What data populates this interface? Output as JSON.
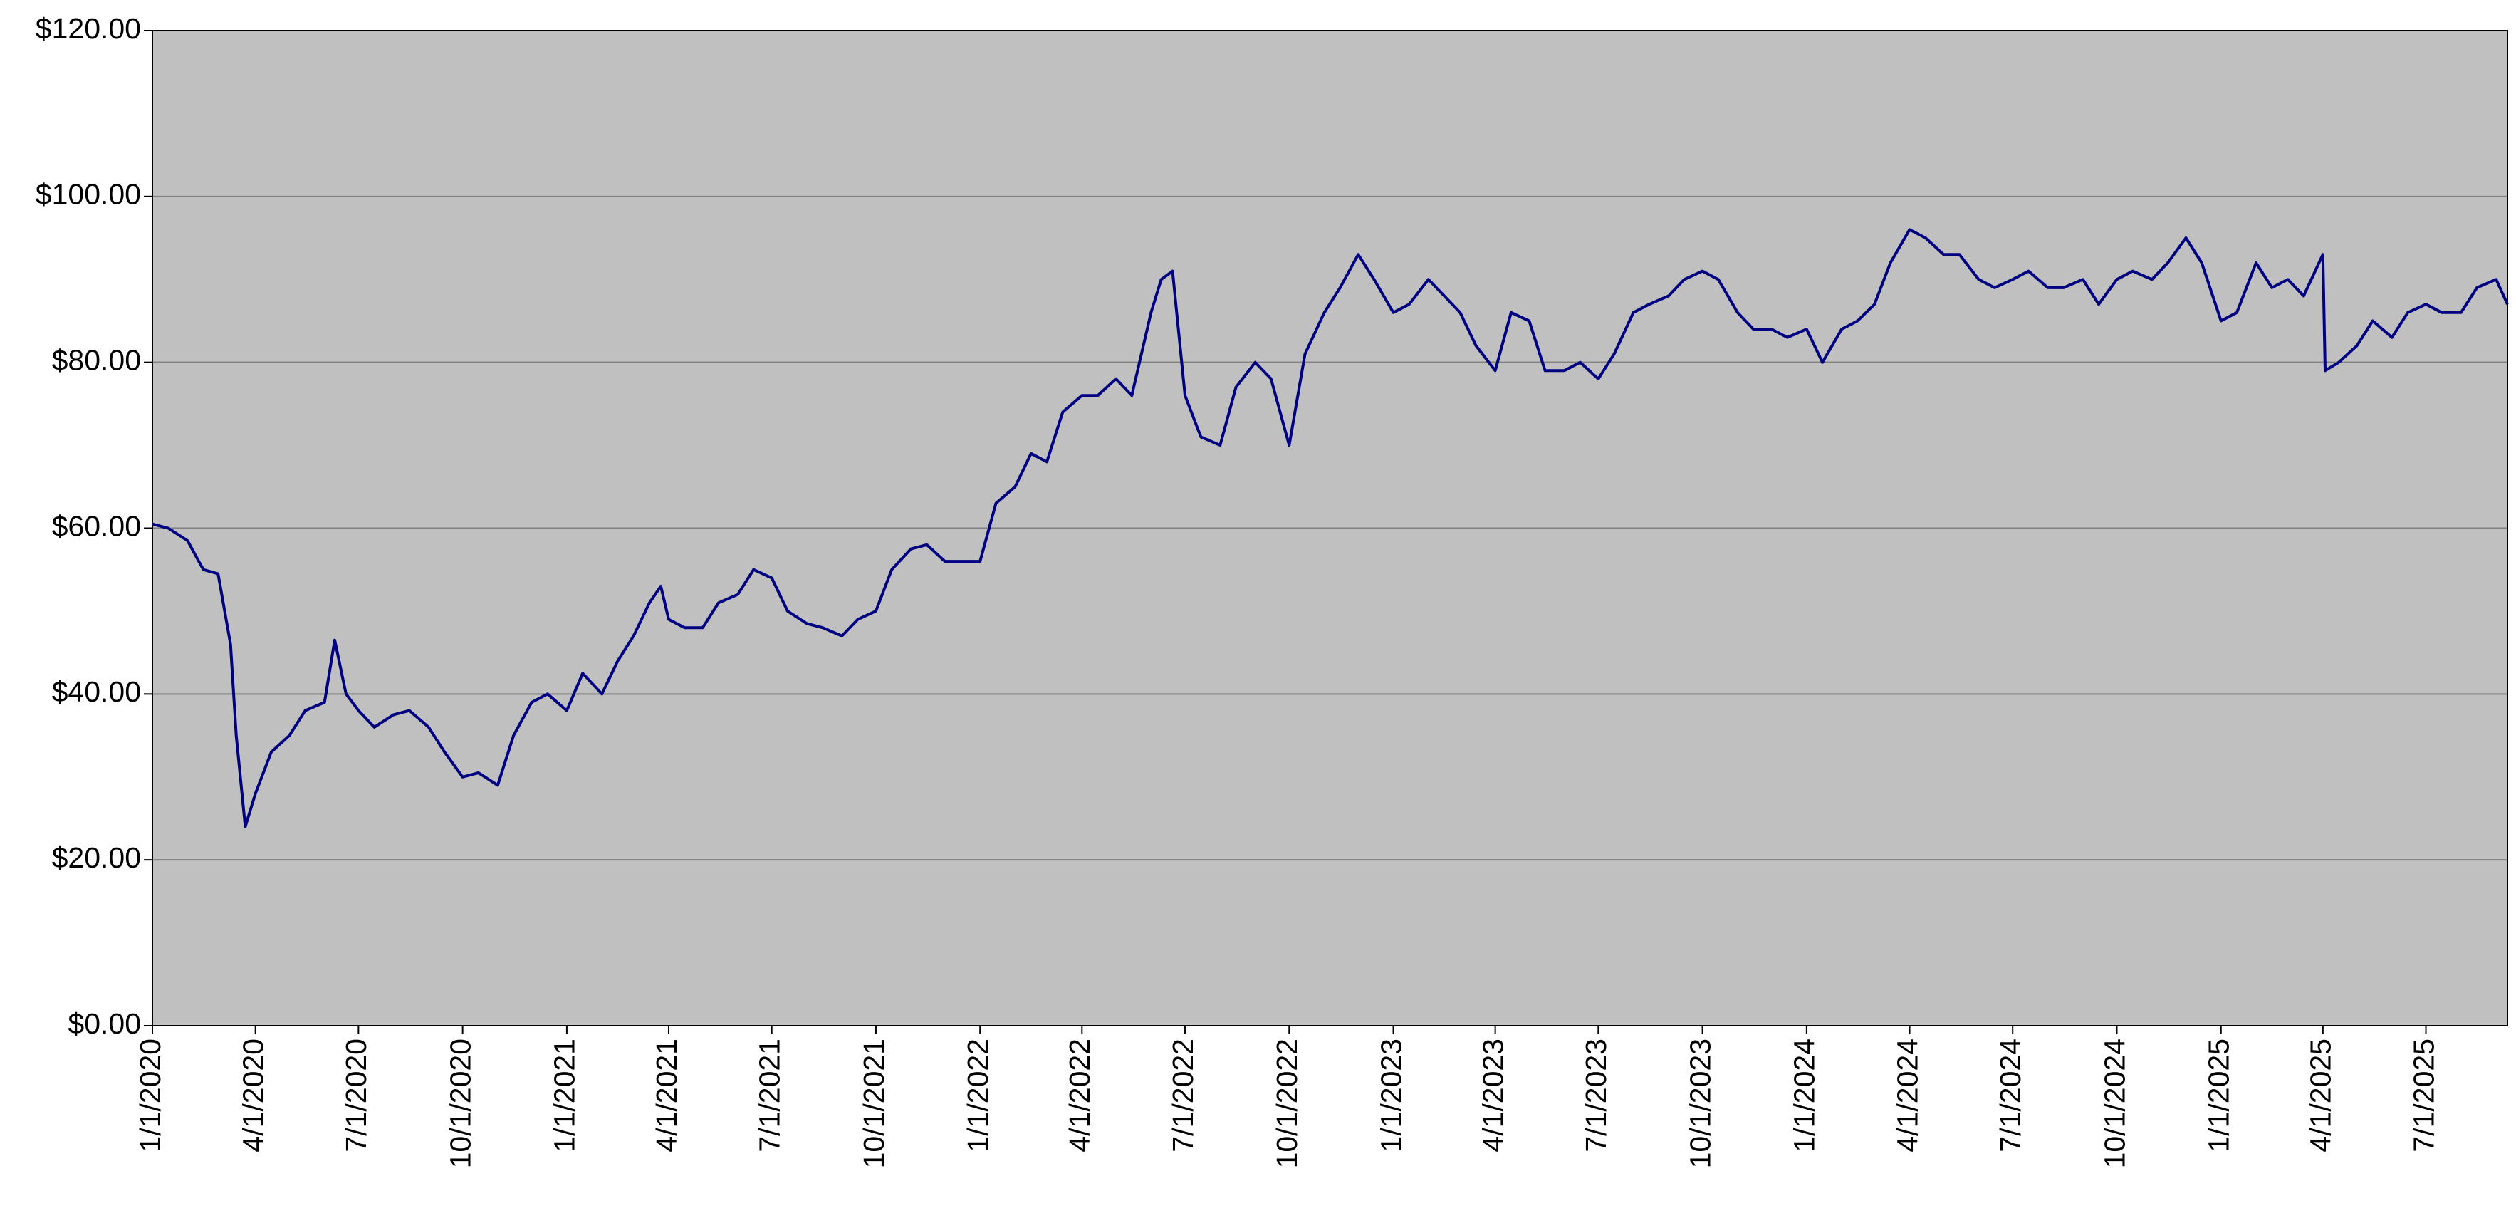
{
  "chart_data": {
    "type": "line",
    "x": [
      "1/1/2020",
      "1/15/2020",
      "2/1/2020",
      "2/15/2020",
      "2/28/2020",
      "3/10/2020",
      "3/15/2020",
      "3/23/2020",
      "4/1/2020",
      "4/15/2020",
      "5/1/2020",
      "5/15/2020",
      "6/1/2020",
      "6/10/2020",
      "6/20/2020",
      "7/1/2020",
      "7/15/2020",
      "8/1/2020",
      "8/15/2020",
      "9/1/2020",
      "9/15/2020",
      "10/1/2020",
      "10/15/2020",
      "11/1/2020",
      "11/15/2020",
      "12/1/2020",
      "12/15/2020",
      "1/1/2021",
      "1/15/2021",
      "2/1/2021",
      "2/15/2021",
      "3/1/2021",
      "3/15/2021",
      "3/25/2021",
      "4/1/2021",
      "4/15/2021",
      "5/1/2021",
      "5/15/2021",
      "6/1/2021",
      "6/15/2021",
      "7/1/2021",
      "7/15/2021",
      "8/1/2021",
      "8/15/2021",
      "9/1/2021",
      "9/15/2021",
      "10/1/2021",
      "10/15/2021",
      "11/1/2021",
      "11/15/2021",
      "12/1/2021",
      "12/15/2021",
      "1/1/2022",
      "1/15/2022",
      "2/1/2022",
      "2/15/2022",
      "3/1/2022",
      "3/15/2022",
      "4/1/2022",
      "4/15/2022",
      "5/1/2022",
      "5/15/2022",
      "6/1/2022",
      "6/10/2022",
      "6/20/2022",
      "7/1/2022",
      "7/15/2022",
      "8/1/2022",
      "8/15/2022",
      "9/1/2022",
      "9/15/2022",
      "10/1/2022",
      "10/15/2022",
      "11/1/2022",
      "11/15/2022",
      "12/1/2022",
      "12/15/2022",
      "1/1/2023",
      "1/15/2023",
      "2/1/2023",
      "2/15/2023",
      "3/1/2023",
      "3/15/2023",
      "4/1/2023",
      "4/15/2023",
      "5/1/2023",
      "5/15/2023",
      "6/1/2023",
      "6/15/2023",
      "7/1/2023",
      "7/15/2023",
      "8/1/2023",
      "8/15/2023",
      "9/1/2023",
      "9/15/2023",
      "10/1/2023",
      "10/15/2023",
      "11/1/2023",
      "11/15/2023",
      "12/1/2023",
      "12/15/2023",
      "1/1/2024",
      "1/15/2024",
      "2/1/2024",
      "2/15/2024",
      "3/1/2024",
      "3/15/2024",
      "4/1/2024",
      "4/15/2024",
      "5/1/2024",
      "5/15/2024",
      "6/1/2024",
      "6/15/2024",
      "7/1/2024",
      "7/15/2024",
      "8/1/2024",
      "8/15/2024",
      "9/1/2024",
      "9/15/2024",
      "10/1/2024",
      "10/15/2024",
      "11/1/2024",
      "11/15/2024",
      "12/1/2024",
      "12/15/2024",
      "1/1/2025",
      "1/15/2025",
      "2/1/2025",
      "2/15/2025",
      "3/1/2025",
      "3/15/2025",
      "4/1/2025",
      "4/3/2025",
      "4/15/2025",
      "5/1/2025",
      "5/15/2025",
      "6/1/2025",
      "6/15/2025",
      "7/1/2025",
      "7/15/2025",
      "8/1/2025",
      "8/15/2025",
      "9/1/2025",
      "9/11/2025"
    ],
    "series": [
      {
        "color": "#000080",
        "values": [
          60.5,
          60,
          58.5,
          55,
          54.5,
          46,
          35,
          24,
          28,
          33,
          35,
          38,
          39,
          46.5,
          40,
          38,
          36,
          37.5,
          38,
          36,
          33,
          30,
          30.5,
          29,
          35,
          39,
          40,
          38,
          42.5,
          40,
          44,
          47,
          51,
          53,
          49,
          48,
          48,
          51,
          52,
          55,
          54,
          50,
          48.5,
          48,
          47,
          49,
          50,
          55,
          57.5,
          58,
          56,
          56,
          56,
          63,
          65,
          69,
          68,
          74,
          76,
          76,
          78,
          76,
          86,
          90,
          91,
          76,
          71,
          70,
          77,
          80,
          78,
          70,
          81,
          86,
          89,
          93,
          90,
          86,
          87,
          90,
          88,
          86,
          82,
          79,
          86,
          85,
          79,
          79,
          80,
          78,
          81,
          86,
          87,
          88,
          90,
          91,
          90,
          86,
          84,
          84,
          83,
          84,
          80,
          84,
          85,
          87,
          92,
          96,
          95,
          93,
          93,
          90,
          89,
          90,
          91,
          89,
          89,
          90,
          87,
          90,
          91,
          90,
          92,
          95,
          92,
          85,
          86,
          92,
          89,
          90,
          88,
          93,
          79,
          80,
          82,
          85,
          83,
          86,
          87,
          86,
          86,
          89,
          90,
          87
        ]
      }
    ],
    "xlim": [
      "1/1/2020",
      "9/11/2025"
    ],
    "xticks": [
      "1/1/2020",
      "4/1/2020",
      "7/1/2020",
      "10/1/2020",
      "1/1/2021",
      "4/1/2021",
      "7/1/2021",
      "10/1/2021",
      "1/1/2022",
      "4/1/2022",
      "7/1/2022",
      "10/1/2022",
      "1/1/2023",
      "4/1/2023",
      "7/1/2023",
      "10/1/2023",
      "1/1/2024",
      "4/1/2024",
      "7/1/2024",
      "10/1/2024",
      "1/1/2025",
      "4/1/2025",
      "7/1/2025"
    ],
    "ylim": [
      0,
      120
    ],
    "yticks": [
      {
        "value": 0,
        "label": "$0.00"
      },
      {
        "value": 20,
        "label": "$20.00"
      },
      {
        "value": 40,
        "label": "$40.00"
      },
      {
        "value": 60,
        "label": "$60.00"
      },
      {
        "value": 80,
        "label": "$80.00"
      },
      {
        "value": 100,
        "label": "$100.00"
      },
      {
        "value": 120,
        "label": "$120.00"
      }
    ],
    "grid": true,
    "plot_background": "#c0c0c0"
  }
}
